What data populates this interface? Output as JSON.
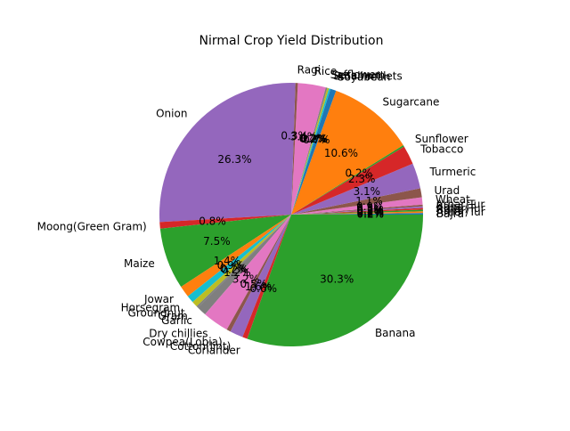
{
  "chart_data": {
    "type": "pie",
    "title": "Nirmal Crop Yield Distribution",
    "start_angle_deg": 0,
    "direction": "counterclockwise",
    "label_format": "percent_1dp",
    "slices": [
      {
        "label": "Bajra",
        "value": 0.2,
        "pct": "0.2%",
        "color": "#1f77b4"
      },
      {
        "label": "Arhar/Tur",
        "value": 0.2,
        "pct": "0.2%",
        "color": "#ff7f0e"
      },
      {
        "label": "Bajra",
        "value": 0.2,
        "pct": "0.2%",
        "color": "#2ca02c"
      },
      {
        "label": "Arhar/Tur",
        "value": 0.2,
        "pct": "0.2%",
        "color": "#d62728"
      },
      {
        "label": "Bajra",
        "value": 0.2,
        "pct": "0.2%",
        "color": "#9467bd"
      },
      {
        "label": "Arhar/Tur",
        "value": 0.2,
        "pct": "0.2%",
        "color": "#8c564b"
      },
      {
        "label": "Wheat",
        "value": 0.9,
        "pct": "0.9%",
        "color": "#e377c2"
      },
      {
        "label": "Urad",
        "value": 1.1,
        "pct": "1.1%",
        "color": "#8c564b"
      },
      {
        "label": "Turmeric",
        "value": 3.1,
        "pct": "3.1%",
        "color": "#9467bd"
      },
      {
        "label": "Tobacco",
        "value": 2.3,
        "pct": "2.3%",
        "color": "#d62728"
      },
      {
        "label": "Sunflower",
        "value": 0.2,
        "pct": "0.2%",
        "color": "#2ca02c"
      },
      {
        "label": "Sugarcane",
        "value": 10.6,
        "pct": "10.6%",
        "color": "#ff7f0e"
      },
      {
        "label": "Soyabean",
        "value": 0.7,
        "pct": "0.7%",
        "color": "#1f77b4"
      },
      {
        "label": "Small millets",
        "value": 0.2,
        "pct": "0.2%",
        "color": "#17becf"
      },
      {
        "label": "Sesamum",
        "value": 0.2,
        "pct": "0.2%",
        "color": "#bcbd22"
      },
      {
        "label": "Safflower",
        "value": 0.2,
        "pct": "0.2%",
        "color": "#7f7f7f"
      },
      {
        "label": "Rice",
        "value": 3.4,
        "pct": "3.4%",
        "color": "#e377c2"
      },
      {
        "label": "Ragi",
        "value": 0.3,
        "pct": "0.3%",
        "color": "#8c564b"
      },
      {
        "label": "Onion",
        "value": 26.3,
        "pct": "26.3%",
        "color": "#9467bd"
      },
      {
        "label": "Moong(Green Gram)",
        "value": 0.8,
        "pct": "0.8%",
        "color": "#d62728"
      },
      {
        "label": "Maize",
        "value": 7.5,
        "pct": "7.5%",
        "color": "#2ca02c"
      },
      {
        "label": "Jowar",
        "value": 1.4,
        "pct": "1.4%",
        "color": "#ff7f0e"
      },
      {
        "label": "Horsegram",
        "value": 0.9,
        "pct": "0.9%",
        "color": "#17becf"
      },
      {
        "label": "Groundnut",
        "value": 0.7,
        "pct": "0.7%",
        "color": "#bcbd22"
      },
      {
        "label": "Gram",
        "value": 0.2,
        "pct": "0.2%",
        "color": "#7f7f7f"
      },
      {
        "label": "Garlic",
        "value": 1.2,
        "pct": "1.2%",
        "color": "#7f7f7f"
      },
      {
        "label": "Dry chillies",
        "value": 3.2,
        "pct": "3.2%",
        "color": "#e377c2"
      },
      {
        "label": "Cowpea(Lobia)",
        "value": 0.5,
        "pct": "0.5%",
        "color": "#8c564b"
      },
      {
        "label": "Cotton(lint)",
        "value": 1.6,
        "pct": "1.6%",
        "color": "#9467bd"
      },
      {
        "label": "Coriander",
        "value": 0.6,
        "pct": "0.6%",
        "color": "#d62728"
      },
      {
        "label": "Banana",
        "value": 30.3,
        "pct": "30.3%",
        "color": "#2ca02c"
      }
    ]
  }
}
